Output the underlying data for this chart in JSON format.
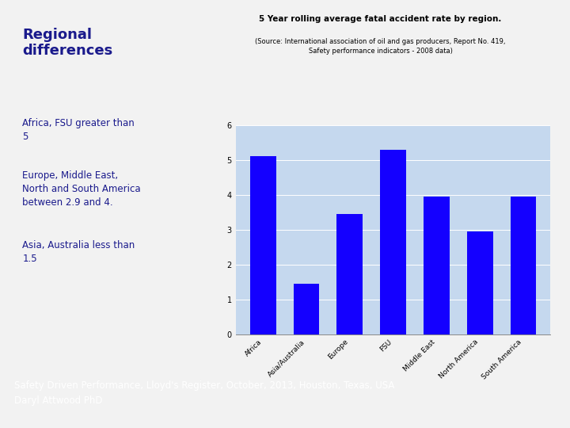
{
  "categories": [
    "Africa",
    "Asia/Australia",
    "Europe",
    "FSU",
    "Middle East",
    "North America",
    "South America"
  ],
  "values": [
    5.1,
    1.45,
    3.45,
    5.3,
    3.95,
    2.95,
    3.95
  ],
  "bar_color": "#1400FF",
  "chart_title": "5 Year rolling average fatal accident rate by region.",
  "chart_subtitle": "(Source: International association of oil and gas producers, Report No. 419,\nSafety performance indicators - 2008 data)",
  "chart_bg": "#C5D8EE",
  "ylim": [
    0,
    6
  ],
  "yticks": [
    0,
    1,
    2,
    3,
    4,
    5,
    6
  ],
  "left_title": "Regional\ndifferences",
  "left_title_color": "#1A1A8C",
  "left_bullet1": "Africa, FSU greater than\n5",
  "left_bullet2": "Europe, Middle East,\nNorth and South America\nbetween 2.9 and 4.",
  "left_bullet3": "Asia, Australia less than\n1.5",
  "left_text_color": "#1A1A8C",
  "page_bg": "#F2F2F2",
  "card_bg": "#FFFFFF",
  "footer_bg": "#0000AA",
  "footer_text": "Safety Driven Performance, Lloyd's Register, October, 2013, Houston, Texas, USA\nDaryl Attwood PhD",
  "footer_text_color": "#FFFFFF",
  "chart_border_color": "#999999",
  "chart_title_fontsize": 7.5,
  "chart_subtitle_fontsize": 6,
  "bar_tick_fontsize": 6.5,
  "ytick_fontsize": 7
}
